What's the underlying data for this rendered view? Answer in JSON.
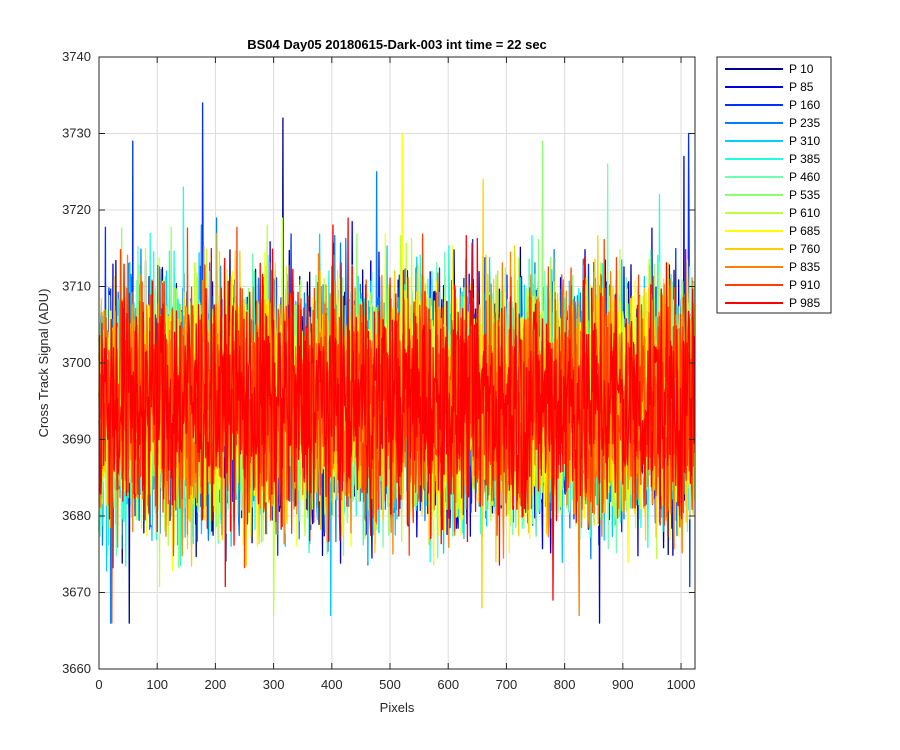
{
  "chart_data": {
    "type": "line",
    "title": "BS04 Day05 20180615-Dark-003 int time = 22 sec",
    "xlabel": "Pixels",
    "ylabel": "Cross Track Signal (ADU)",
    "xlim": [
      0,
      1024
    ],
    "ylim": [
      3660,
      3740
    ],
    "xticks": [
      0,
      100,
      200,
      300,
      400,
      500,
      600,
      700,
      800,
      900,
      1000
    ],
    "yticks": [
      3660,
      3670,
      3680,
      3690,
      3700,
      3710,
      3720,
      3730,
      3740
    ],
    "grid": true,
    "legend_location": "outside-right-top",
    "noise": {
      "mean": 3695,
      "sd": 8,
      "points_per_series": 1024
    },
    "series": [
      {
        "name": "P 10",
        "color": "#00008f",
        "spikes": [
          {
            "x": 316,
            "y": 3732
          },
          {
            "x": 52,
            "y": 3665
          }
        ]
      },
      {
        "name": "P 85",
        "color": "#0000df",
        "spikes": [
          {
            "x": 1005,
            "y": 3727
          },
          {
            "x": 860,
            "y": 3666
          }
        ]
      },
      {
        "name": "P 160",
        "color": "#0030ff",
        "spikes": [
          {
            "x": 178,
            "y": 3734
          },
          {
            "x": 58,
            "y": 3729
          },
          {
            "x": 1013,
            "y": 3730
          }
        ]
      },
      {
        "name": "P 235",
        "color": "#0080ff",
        "spikes": [
          {
            "x": 477,
            "y": 3725
          },
          {
            "x": 20,
            "y": 3665
          }
        ]
      },
      {
        "name": "P 310",
        "color": "#00cfff",
        "spikes": [
          {
            "x": 398,
            "y": 3667
          }
        ]
      },
      {
        "name": "P 385",
        "color": "#20ffdf",
        "spikes": [
          {
            "x": 145,
            "y": 3723
          },
          {
            "x": 963,
            "y": 3722
          }
        ]
      },
      {
        "name": "P 460",
        "color": "#70ffaf",
        "spikes": [
          {
            "x": 874,
            "y": 3726
          }
        ]
      },
      {
        "name": "P 535",
        "color": "#8fff70",
        "spikes": [
          {
            "x": 762,
            "y": 3729
          }
        ]
      },
      {
        "name": "P 610",
        "color": "#bfff40",
        "spikes": [
          {
            "x": 300,
            "y": 3667
          }
        ]
      },
      {
        "name": "P 685",
        "color": "#ffff00",
        "spikes": [
          {
            "x": 521,
            "y": 3730
          }
        ]
      },
      {
        "name": "P 760",
        "color": "#ffcf00",
        "spikes": [
          {
            "x": 660,
            "y": 3724
          },
          {
            "x": 658,
            "y": 3668
          }
        ]
      },
      {
        "name": "P 835",
        "color": "#ff8000",
        "spikes": [
          {
            "x": 825,
            "y": 3667
          }
        ]
      },
      {
        "name": "P 910",
        "color": "#ff4000",
        "spikes": [
          {
            "x": 22,
            "y": 3666
          }
        ]
      },
      {
        "name": "P 985",
        "color": "#ff0000",
        "spikes": [
          {
            "x": 780,
            "y": 3669
          }
        ]
      }
    ]
  }
}
